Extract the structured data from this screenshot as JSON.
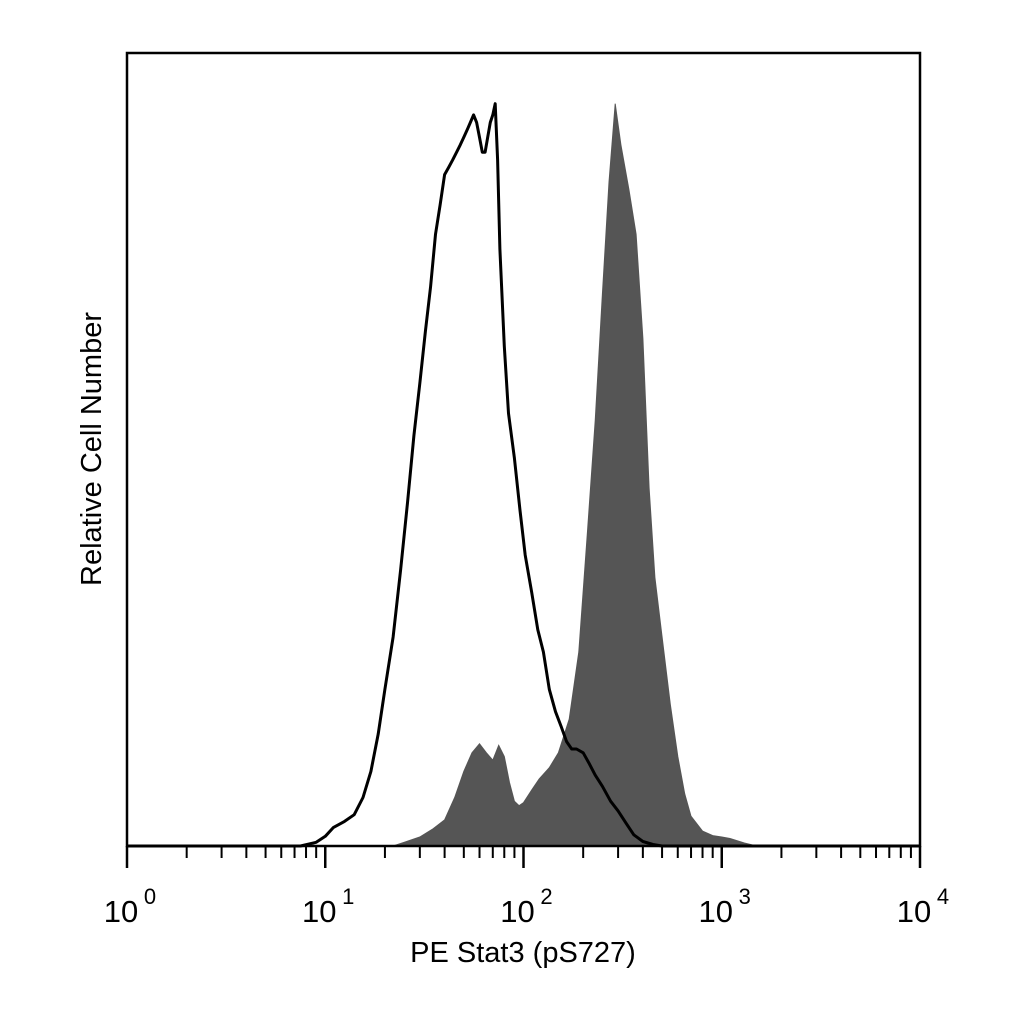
{
  "chart_data": {
    "type": "area",
    "xlabel": "PE Stat3 (pS727)",
    "ylabel": "Relative Cell Number",
    "x_scale": "log",
    "xlim": [
      1,
      10000
    ],
    "ylim": [
      0,
      100
    ],
    "grid": false,
    "x_ticks": [
      {
        "value": 1,
        "base": "10",
        "exp": "0"
      },
      {
        "value": 10,
        "base": "10",
        "exp": "1"
      },
      {
        "value": 100,
        "base": "10",
        "exp": "2"
      },
      {
        "value": 1000,
        "base": "10",
        "exp": "3"
      },
      {
        "value": 10000,
        "base": "10",
        "exp": "4"
      }
    ],
    "series": [
      {
        "style": "outline",
        "color": "#000000",
        "points": [
          [
            1,
            0
          ],
          [
            7.5,
            0
          ],
          [
            9,
            0.5
          ],
          [
            10,
            1.3
          ],
          [
            11,
            2.5
          ],
          [
            12.5,
            3.3
          ],
          [
            14,
            4.2
          ],
          [
            15.5,
            6.5
          ],
          [
            17,
            10
          ],
          [
            18.5,
            15
          ],
          [
            20,
            21
          ],
          [
            22,
            28
          ],
          [
            24,
            37
          ],
          [
            26,
            46
          ],
          [
            28,
            55
          ],
          [
            30,
            62
          ],
          [
            32,
            69
          ],
          [
            34,
            75
          ],
          [
            36,
            82
          ],
          [
            38,
            86
          ],
          [
            40,
            90
          ],
          [
            42,
            91
          ],
          [
            44,
            92
          ],
          [
            46,
            93
          ],
          [
            48,
            94
          ],
          [
            50,
            95
          ],
          [
            52,
            96
          ],
          [
            54,
            97
          ],
          [
            56,
            98
          ],
          [
            58,
            97
          ],
          [
            60,
            95
          ],
          [
            62,
            93
          ],
          [
            64,
            93
          ],
          [
            66,
            95
          ],
          [
            68,
            97
          ],
          [
            70,
            98
          ],
          [
            72,
            99.5
          ],
          [
            74,
            92
          ],
          [
            76,
            80
          ],
          [
            80,
            67
          ],
          [
            84,
            58
          ],
          [
            90,
            52
          ],
          [
            96,
            45
          ],
          [
            102,
            39
          ],
          [
            110,
            34
          ],
          [
            118,
            29
          ],
          [
            126,
            26
          ],
          [
            135,
            21
          ],
          [
            145,
            18
          ],
          [
            155,
            16
          ],
          [
            165,
            14
          ],
          [
            175,
            13
          ],
          [
            185,
            13
          ],
          [
            200,
            12.5
          ],
          [
            215,
            11
          ],
          [
            230,
            9.5
          ],
          [
            250,
            8
          ],
          [
            275,
            6
          ],
          [
            300,
            4.7
          ],
          [
            330,
            3
          ],
          [
            360,
            1.5
          ],
          [
            400,
            0.6
          ],
          [
            450,
            0.2
          ],
          [
            500,
            0
          ],
          [
            10000,
            0
          ]
        ]
      },
      {
        "style": "filled",
        "color": "#555555",
        "points": [
          [
            1,
            0
          ],
          [
            22,
            0
          ],
          [
            25,
            0.5
          ],
          [
            30,
            1.2
          ],
          [
            35,
            2.3
          ],
          [
            40,
            3.5
          ],
          [
            45,
            6.5
          ],
          [
            50,
            10
          ],
          [
            55,
            12.5
          ],
          [
            60,
            13.7
          ],
          [
            65,
            12.5
          ],
          [
            70,
            11.5
          ],
          [
            75,
            13.5
          ],
          [
            80,
            12
          ],
          [
            85,
            8.5
          ],
          [
            90,
            6
          ],
          [
            95,
            5.4
          ],
          [
            100,
            5.8
          ],
          [
            110,
            7.5
          ],
          [
            120,
            9
          ],
          [
            135,
            10.5
          ],
          [
            150,
            12.5
          ],
          [
            170,
            17
          ],
          [
            190,
            26
          ],
          [
            210,
            42
          ],
          [
            230,
            57
          ],
          [
            250,
            74
          ],
          [
            270,
            89
          ],
          [
            290,
            99.5
          ],
          [
            310,
            94
          ],
          [
            340,
            88
          ],
          [
            370,
            82
          ],
          [
            400,
            68
          ],
          [
            430,
            48
          ],
          [
            460,
            36
          ],
          [
            500,
            28
          ],
          [
            550,
            19
          ],
          [
            600,
            12
          ],
          [
            650,
            7
          ],
          [
            700,
            4
          ],
          [
            800,
            2
          ],
          [
            900,
            1.4
          ],
          [
            1000,
            1.2
          ],
          [
            1100,
            1
          ],
          [
            1300,
            0.4
          ],
          [
            1500,
            0
          ],
          [
            10000,
            0
          ]
        ]
      }
    ]
  }
}
